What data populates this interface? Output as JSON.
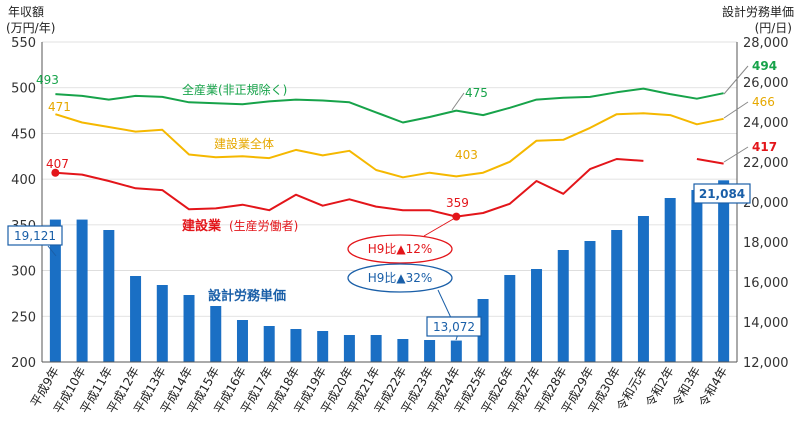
{
  "chart_data": {
    "type": "bar+line",
    "left_axis_title": [
      "年収額",
      "(万円/年)"
    ],
    "right_axis_title": [
      "設計労務単価",
      "(円/日)"
    ],
    "left_ylim": [
      200,
      550
    ],
    "left_ticks": [
      200,
      250,
      300,
      350,
      400,
      450,
      500,
      550
    ],
    "right_ylim": [
      12000,
      28000
    ],
    "right_ticks": [
      12000,
      14000,
      16000,
      18000,
      20000,
      22000,
      24000,
      26000,
      28000
    ],
    "right_tick_labels": [
      "12,000",
      "14,000",
      "16,000",
      "18,000",
      "20,000",
      "22,000",
      "24,000",
      "26,000",
      "28,000"
    ],
    "categories": [
      "平成9年",
      "平成10年",
      "平成11年",
      "平成12年",
      "平成13年",
      "平成14年",
      "平成15年",
      "平成16年",
      "平成17年",
      "平成18年",
      "平成19年",
      "平成20年",
      "平成21年",
      "平成22年",
      "平成23年",
      "平成24年",
      "平成25年",
      "平成26年",
      "平成27年",
      "平成28年",
      "平成29年",
      "平成30年",
      "令和元年",
      "令和2年",
      "令和3年",
      "令和4年"
    ],
    "bars": {
      "name": "設計労務単価",
      "axis": "right",
      "color": "#1a6fc4",
      "values": [
        19121,
        19121,
        18600,
        16300,
        15850,
        15350,
        14800,
        14100,
        13800,
        13650,
        13550,
        13350,
        13350,
        13150,
        13100,
        13072,
        15150,
        16350,
        16650,
        17600,
        18050,
        18600,
        19300,
        20200,
        20600,
        21084
      ]
    },
    "series": [
      {
        "name": "全産業(非正規除く)",
        "axis": "left",
        "color": "#17a34a",
        "values": [
          493,
          491,
          487,
          491,
          490,
          484,
          483,
          482,
          485,
          487,
          486,
          484,
          473,
          462,
          468,
          475,
          470,
          478,
          487,
          489,
          490,
          495,
          499,
          493,
          488,
          494
        ]
      },
      {
        "name": "建設業全体",
        "axis": "left",
        "color": "#f5b800",
        "values": [
          471,
          462,
          457,
          452,
          454,
          427,
          424,
          425,
          423,
          432,
          426,
          431,
          410,
          402,
          407,
          403,
          407,
          419,
          442,
          443,
          456,
          471,
          472,
          470,
          460,
          466
        ]
      },
      {
        "name": "建設業(生産労働者)",
        "axis": "left",
        "color": "#e3151a",
        "values": [
          407,
          405,
          398,
          390,
          388,
          367,
          368,
          372,
          366,
          383,
          371,
          378,
          370,
          366,
          366,
          359,
          363,
          373,
          398,
          384,
          411,
          422,
          420,
          null,
          422,
          417
        ]
      }
    ],
    "data_labels": {
      "green_first": "493",
      "green_mid": "475",
      "green_last": "494",
      "yellow_first": "471",
      "yellow_mid": "403",
      "yellow_last": "466",
      "red_first": "407",
      "red_mid": "359",
      "red_last": "417",
      "bar_first": "19,121",
      "bar_mid": "13,072",
      "bar_last": "21,084"
    },
    "series_labels": {
      "green": "全産業(非正規除く)",
      "yellow": "建設業全体",
      "red_main": "建設業",
      "red_sub": "(生産労働者)",
      "bars": "設計労務単価"
    },
    "annotations": {
      "red_callout": "H9比▲12%",
      "blue_callout": "H9比▲32%"
    }
  }
}
